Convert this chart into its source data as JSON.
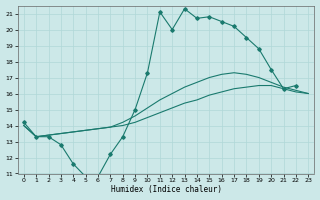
{
  "xlabel": "Humidex (Indice chaleur)",
  "xlim": [
    -0.5,
    23.5
  ],
  "ylim": [
    11,
    21.5
  ],
  "xticks": [
    0,
    1,
    2,
    3,
    4,
    5,
    6,
    7,
    8,
    9,
    10,
    11,
    12,
    13,
    14,
    15,
    16,
    17,
    18,
    19,
    20,
    21,
    22,
    23
  ],
  "yticks": [
    11,
    12,
    13,
    14,
    15,
    16,
    17,
    18,
    19,
    20,
    21
  ],
  "bg_color": "#cce8e8",
  "line_color": "#1a7a6e",
  "grid_color": "#b0d8d8",
  "line1_x": [
    0,
    1,
    2,
    3,
    4,
    5,
    6,
    7,
    8,
    9,
    10,
    11,
    12,
    13,
    14,
    15,
    16,
    17,
    18,
    19,
    20,
    21,
    22
  ],
  "line1_y": [
    14.2,
    13.3,
    13.3,
    12.8,
    11.6,
    10.8,
    10.8,
    12.2,
    13.3,
    15.0,
    17.3,
    21.1,
    20.0,
    21.3,
    20.7,
    20.8,
    20.5,
    20.2,
    19.5,
    18.8,
    17.5,
    16.3,
    16.5
  ],
  "line2_x": [
    0,
    1,
    2,
    3,
    4,
    5,
    6,
    7,
    8,
    9,
    10,
    11,
    12,
    13,
    14,
    15,
    16,
    17,
    18,
    19,
    20,
    21,
    22,
    23
  ],
  "line2_y": [
    14.0,
    13.3,
    13.4,
    13.5,
    13.6,
    13.7,
    13.8,
    13.9,
    14.0,
    14.2,
    14.5,
    14.8,
    15.1,
    15.4,
    15.6,
    15.9,
    16.1,
    16.3,
    16.4,
    16.5,
    16.5,
    16.3,
    16.1,
    16.0
  ],
  "line3_x": [
    0,
    1,
    2,
    3,
    4,
    5,
    6,
    7,
    8,
    9,
    10,
    11,
    12,
    13,
    14,
    15,
    16,
    17,
    18,
    19,
    20,
    21,
    22,
    23
  ],
  "line3_y": [
    14.0,
    13.3,
    13.4,
    13.5,
    13.6,
    13.7,
    13.8,
    13.9,
    14.2,
    14.6,
    15.1,
    15.6,
    16.0,
    16.4,
    16.7,
    17.0,
    17.2,
    17.3,
    17.2,
    17.0,
    16.7,
    16.4,
    16.2,
    16.0
  ]
}
